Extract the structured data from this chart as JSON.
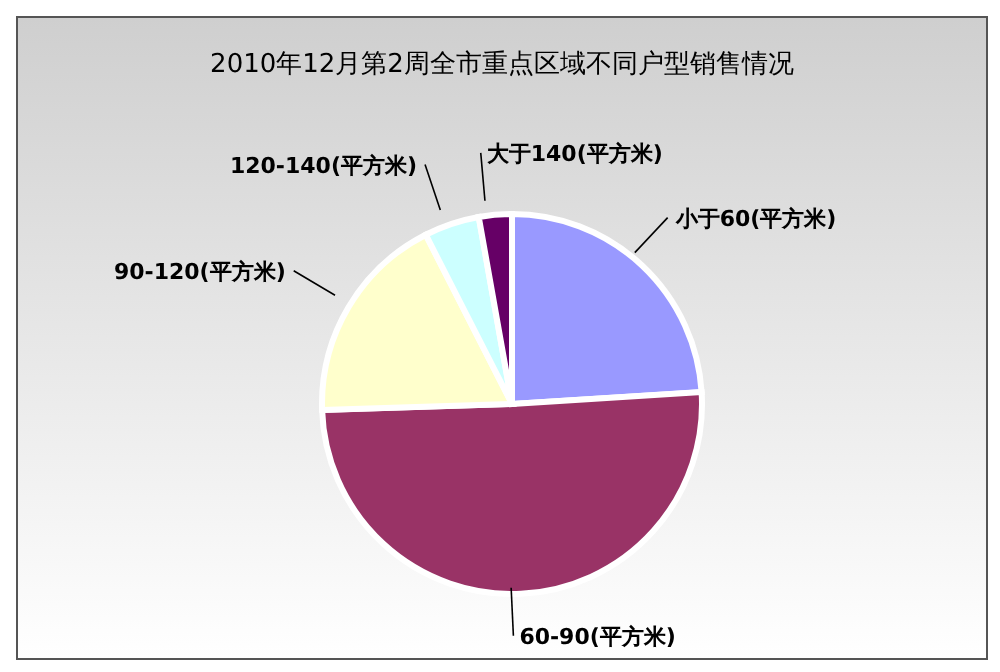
{
  "chart_data": {
    "type": "pie",
    "title": "2010年12月第2周全市重点区域不同户型销售情况",
    "categories": [
      "小于60(平方米)",
      "60-90(平方米)",
      "90-120(平方米)",
      "120-140(平方米)",
      "大于140(平方米)"
    ],
    "values": [
      24,
      50.5,
      18,
      4.7,
      2.8
    ],
    "colors": [
      "#9999ff",
      "#993366",
      "#ffffcc",
      "#ccffff",
      "#660066"
    ],
    "legend": false
  }
}
